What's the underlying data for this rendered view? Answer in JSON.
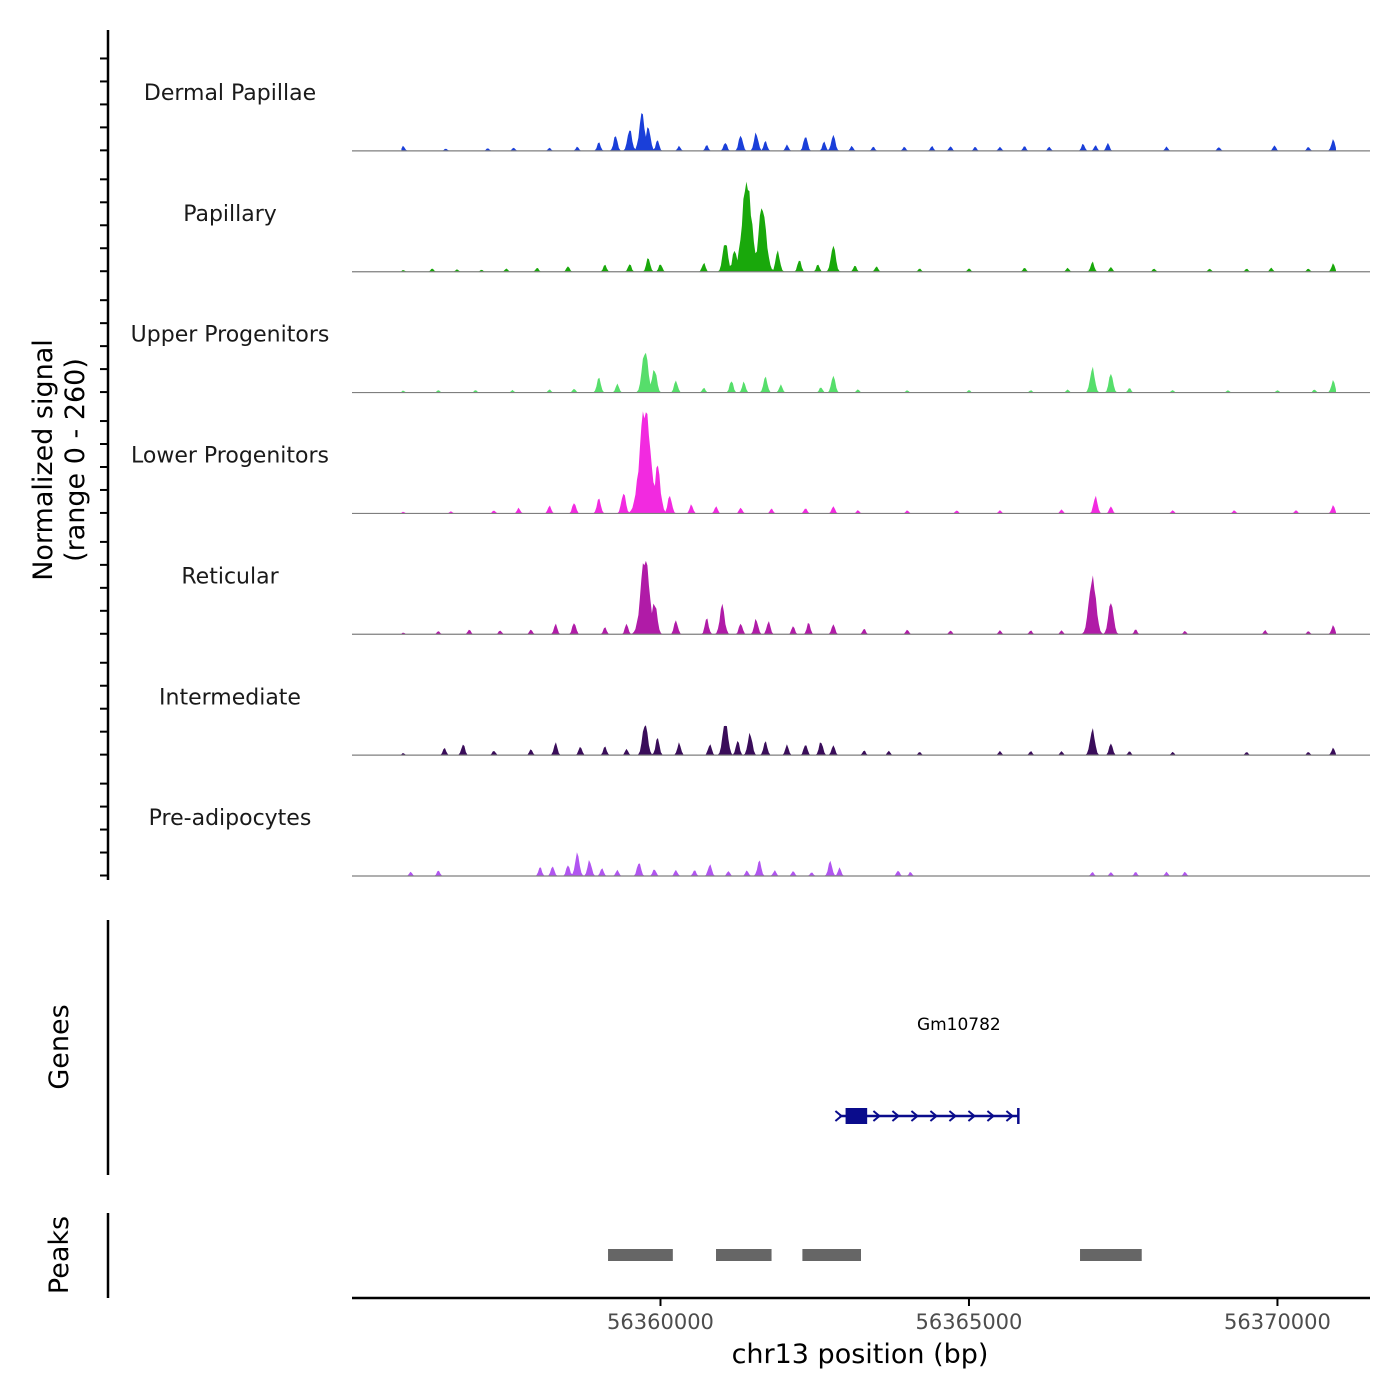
{
  "chart_data": {
    "type": "area",
    "title": "",
    "xlabel": "chr13 position (bp)",
    "ylabel": "Normalized signal",
    "ylabel_range": "(range 0 - 260)",
    "ylim": [
      0,
      260
    ],
    "xlim": [
      56355000,
      56371500
    ],
    "x_ticks": [
      56360000,
      56365000,
      56370000
    ],
    "x_tick_labels": [
      "56360000",
      "56365000",
      "56370000"
    ],
    "series": [
      {
        "name": "Dermal Papillae",
        "color": "#1a3fd9",
        "peaks": [
          [
            56355830,
            12
          ],
          [
            56356520,
            6
          ],
          [
            56357200,
            7
          ],
          [
            56357620,
            8
          ],
          [
            56358200,
            8
          ],
          [
            56358650,
            10
          ],
          [
            56359000,
            22
          ],
          [
            56359270,
            38
          ],
          [
            56359500,
            55
          ],
          [
            56359700,
            90
          ],
          [
            56359800,
            60
          ],
          [
            56359950,
            25
          ],
          [
            56360300,
            12
          ],
          [
            56360750,
            14
          ],
          [
            56361050,
            22
          ],
          [
            56361300,
            40
          ],
          [
            56361550,
            45
          ],
          [
            56361700,
            25
          ],
          [
            56362050,
            15
          ],
          [
            56362350,
            38
          ],
          [
            56362650,
            22
          ],
          [
            56362800,
            40
          ],
          [
            56363100,
            12
          ],
          [
            56363450,
            10
          ],
          [
            56363950,
            10
          ],
          [
            56364400,
            12
          ],
          [
            56364700,
            12
          ],
          [
            56365100,
            10
          ],
          [
            56365500,
            10
          ],
          [
            56365900,
            12
          ],
          [
            56366300,
            10
          ],
          [
            56366850,
            18
          ],
          [
            56367050,
            14
          ],
          [
            56367250,
            20
          ],
          [
            56368200,
            10
          ],
          [
            56369050,
            10
          ],
          [
            56369950,
            14
          ],
          [
            56370500,
            10
          ],
          [
            56370900,
            28
          ]
        ]
      },
      {
        "name": "Papillary",
        "color": "#19a80b",
        "peaks": [
          [
            56355830,
            4
          ],
          [
            56356300,
            8
          ],
          [
            56356700,
            6
          ],
          [
            56357100,
            5
          ],
          [
            56357500,
            8
          ],
          [
            56358000,
            10
          ],
          [
            56358500,
            14
          ],
          [
            56359100,
            18
          ],
          [
            56359500,
            20
          ],
          [
            56359800,
            35
          ],
          [
            56360000,
            20
          ],
          [
            56360700,
            22
          ],
          [
            56361050,
            75
          ],
          [
            56361200,
            55
          ],
          [
            56361400,
            220
          ],
          [
            56361650,
            160
          ],
          [
            56361900,
            50
          ],
          [
            56362250,
            30
          ],
          [
            56362550,
            18
          ],
          [
            56362800,
            65
          ],
          [
            56363150,
            16
          ],
          [
            56363500,
            14
          ],
          [
            56364200,
            8
          ],
          [
            56365000,
            8
          ],
          [
            56365900,
            10
          ],
          [
            56366600,
            10
          ],
          [
            56367000,
            25
          ],
          [
            56367300,
            12
          ],
          [
            56368000,
            8
          ],
          [
            56368900,
            8
          ],
          [
            56369500,
            8
          ],
          [
            56369900,
            10
          ],
          [
            56370500,
            8
          ],
          [
            56370900,
            20
          ]
        ]
      },
      {
        "name": "Upper Progenitors",
        "color": "#56de6b",
        "peaks": [
          [
            56355830,
            5
          ],
          [
            56356400,
            6
          ],
          [
            56357000,
            6
          ],
          [
            56357600,
            6
          ],
          [
            56358200,
            8
          ],
          [
            56358600,
            10
          ],
          [
            56359000,
            38
          ],
          [
            56359300,
            22
          ],
          [
            56359750,
            105
          ],
          [
            56359900,
            60
          ],
          [
            56360250,
            30
          ],
          [
            56360700,
            12
          ],
          [
            56361150,
            30
          ],
          [
            56361350,
            26
          ],
          [
            56361700,
            40
          ],
          [
            56361950,
            20
          ],
          [
            56362600,
            14
          ],
          [
            56362800,
            42
          ],
          [
            56363200,
            8
          ],
          [
            56364000,
            6
          ],
          [
            56365000,
            6
          ],
          [
            56366000,
            6
          ],
          [
            56366600,
            8
          ],
          [
            56367000,
            62
          ],
          [
            56367300,
            48
          ],
          [
            56367600,
            12
          ],
          [
            56368300,
            6
          ],
          [
            56369200,
            6
          ],
          [
            56370000,
            6
          ],
          [
            56370600,
            8
          ],
          [
            56370900,
            30
          ]
        ]
      },
      {
        "name": "Lower Progenitors",
        "color": "#f22ae0",
        "peaks": [
          [
            56355830,
            4
          ],
          [
            56356600,
            5
          ],
          [
            56357300,
            8
          ],
          [
            56357700,
            14
          ],
          [
            56358200,
            20
          ],
          [
            56358600,
            28
          ],
          [
            56359000,
            38
          ],
          [
            56359400,
            52
          ],
          [
            56359750,
            260
          ],
          [
            56359950,
            110
          ],
          [
            56360150,
            45
          ],
          [
            56360500,
            22
          ],
          [
            56360900,
            18
          ],
          [
            56361300,
            15
          ],
          [
            56361800,
            12
          ],
          [
            56362350,
            14
          ],
          [
            56362800,
            18
          ],
          [
            56363200,
            8
          ],
          [
            56364000,
            8
          ],
          [
            56364800,
            8
          ],
          [
            56365500,
            8
          ],
          [
            56366500,
            10
          ],
          [
            56367050,
            42
          ],
          [
            56367300,
            18
          ],
          [
            56368300,
            8
          ],
          [
            56369300,
            8
          ],
          [
            56370300,
            8
          ],
          [
            56370900,
            20
          ]
        ]
      },
      {
        "name": "Reticular",
        "color": "#b01ba7",
        "peaks": [
          [
            56355830,
            4
          ],
          [
            56356400,
            8
          ],
          [
            56356900,
            12
          ],
          [
            56357400,
            10
          ],
          [
            56357900,
            12
          ],
          [
            56358300,
            25
          ],
          [
            56358600,
            30
          ],
          [
            56359100,
            18
          ],
          [
            56359450,
            25
          ],
          [
            56359750,
            190
          ],
          [
            56359900,
            80
          ],
          [
            56360250,
            35
          ],
          [
            56360750,
            38
          ],
          [
            56361000,
            70
          ],
          [
            56361300,
            28
          ],
          [
            56361550,
            38
          ],
          [
            56361750,
            32
          ],
          [
            56362150,
            20
          ],
          [
            56362400,
            28
          ],
          [
            56362800,
            25
          ],
          [
            56363300,
            14
          ],
          [
            56364000,
            12
          ],
          [
            56364700,
            10
          ],
          [
            56365500,
            10
          ],
          [
            56366000,
            10
          ],
          [
            56366500,
            10
          ],
          [
            56367000,
            140
          ],
          [
            56367300,
            80
          ],
          [
            56367700,
            12
          ],
          [
            56368500,
            8
          ],
          [
            56369800,
            10
          ],
          [
            56370500,
            8
          ],
          [
            56370900,
            22
          ]
        ]
      },
      {
        "name": "Intermediate",
        "color": "#3a0d5a",
        "peaks": [
          [
            56355830,
            5
          ],
          [
            56356500,
            18
          ],
          [
            56356800,
            28
          ],
          [
            56357300,
            12
          ],
          [
            56357900,
            15
          ],
          [
            56358300,
            30
          ],
          [
            56358700,
            22
          ],
          [
            56359100,
            22
          ],
          [
            56359450,
            15
          ],
          [
            56359750,
            80
          ],
          [
            56359950,
            40
          ],
          [
            56360300,
            30
          ],
          [
            56360800,
            28
          ],
          [
            56361050,
            82
          ],
          [
            56361250,
            35
          ],
          [
            56361450,
            55
          ],
          [
            56361700,
            35
          ],
          [
            56362050,
            25
          ],
          [
            56362350,
            28
          ],
          [
            56362600,
            35
          ],
          [
            56362800,
            25
          ],
          [
            56363300,
            12
          ],
          [
            56363700,
            10
          ],
          [
            56364200,
            8
          ],
          [
            56365500,
            10
          ],
          [
            56366000,
            10
          ],
          [
            56366500,
            10
          ],
          [
            56367000,
            65
          ],
          [
            56367300,
            30
          ],
          [
            56367600,
            10
          ],
          [
            56368300,
            8
          ],
          [
            56369500,
            8
          ],
          [
            56370500,
            8
          ],
          [
            56370900,
            18
          ]
        ]
      },
      {
        "name": "Pre-adipocytes",
        "color": "#b155f0",
        "peaks": [
          [
            56355950,
            10
          ],
          [
            56356400,
            14
          ],
          [
            56358050,
            22
          ],
          [
            56358250,
            25
          ],
          [
            56358500,
            28
          ],
          [
            56358650,
            55
          ],
          [
            56358850,
            40
          ],
          [
            56359050,
            20
          ],
          [
            56359300,
            15
          ],
          [
            56359650,
            35
          ],
          [
            56359900,
            18
          ],
          [
            56360250,
            15
          ],
          [
            56360550,
            15
          ],
          [
            56360800,
            30
          ],
          [
            56361100,
            12
          ],
          [
            56361400,
            14
          ],
          [
            56361600,
            38
          ],
          [
            56361850,
            14
          ],
          [
            56362150,
            12
          ],
          [
            56362450,
            10
          ],
          [
            56362750,
            38
          ],
          [
            56362900,
            20
          ],
          [
            56363850,
            14
          ],
          [
            56364050,
            10
          ],
          [
            56367000,
            10
          ],
          [
            56367300,
            10
          ],
          [
            56367700,
            10
          ],
          [
            56368200,
            10
          ],
          [
            56368500,
            10
          ]
        ]
      }
    ],
    "genes": [
      {
        "name": "Gm10782",
        "start": 56362900,
        "end": 56365800,
        "exon": [
          56363000,
          56363350
        ],
        "strand": "+",
        "color": "#0a0c8c"
      }
    ],
    "peak_regions": [
      [
        56359150,
        56360200
      ],
      [
        56360900,
        56361800
      ],
      [
        56362300,
        56363250
      ],
      [
        56366800,
        56367800
      ]
    ],
    "track_labels": {
      "genes": "Genes",
      "peaks": "Peaks"
    }
  }
}
